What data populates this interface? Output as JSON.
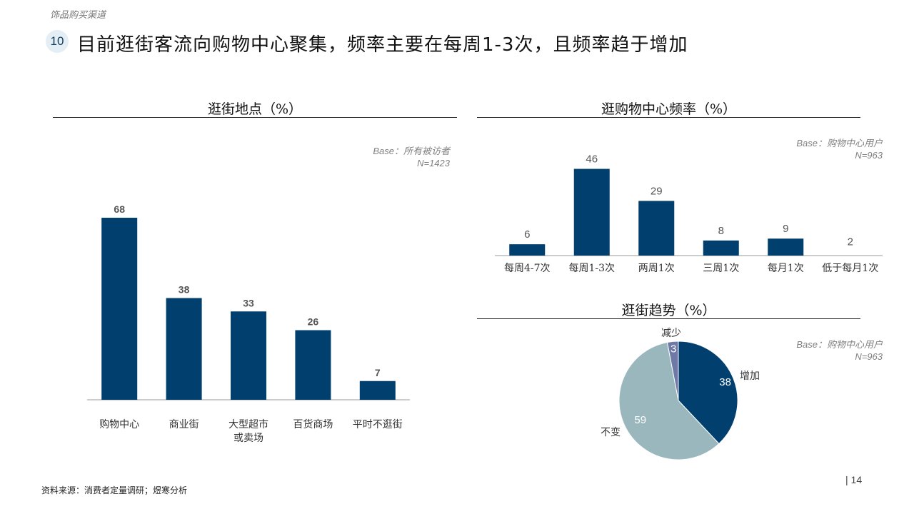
{
  "header": {
    "breadcrumb": "饰品购买渠道",
    "slide_number": "10",
    "title": "目前逛街客流向购物中心聚集，频率主要在每周1-3次，且频率趋于增加"
  },
  "colors": {
    "bar": "#003f6e",
    "pie_increase": "#003f6e",
    "pie_unchanged": "#99b7bd",
    "pie_decrease": "#6f79a8"
  },
  "chart_data": [
    {
      "type": "bar",
      "title": "逛街地点（%）",
      "base_label": "Base：所有被访者",
      "n_label": "N=1423",
      "categories": [
        "购物中心",
        "商业街",
        "大型超市\n或卖场",
        "百货商场",
        "平时不逛街"
      ],
      "values": [
        68,
        38,
        33,
        26,
        7
      ],
      "ylim": [
        0,
        80
      ]
    },
    {
      "type": "bar",
      "title": "逛购物中心频率（%）",
      "base_label": "Base：购物中心用户",
      "n_label": "N=963",
      "categories": [
        "每周4-7次",
        "每周1-3次",
        "两周1次",
        "三周1次",
        "每月1次",
        "低于每月1次"
      ],
      "values": [
        6,
        46,
        29,
        8,
        9,
        2
      ],
      "ylim": [
        0,
        50
      ]
    },
    {
      "type": "pie",
      "title": "逛街趋势（%）",
      "base_label": "Base：购物中心用户",
      "n_label": "N=963",
      "categories": [
        "增加",
        "不变",
        "减少"
      ],
      "values": [
        38,
        59,
        3
      ]
    }
  ],
  "footer": {
    "source": "资料来源：消费者定量调研；煜寒分析",
    "page_number": "| 14"
  }
}
